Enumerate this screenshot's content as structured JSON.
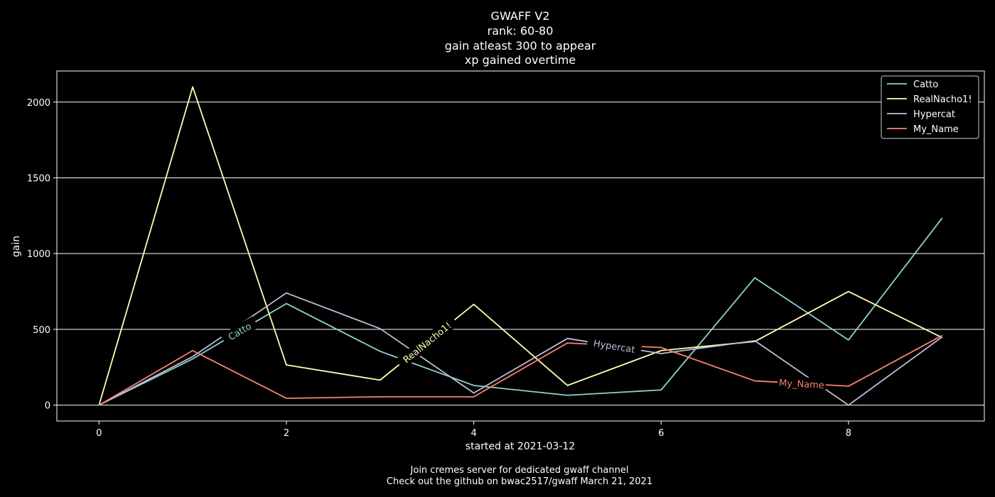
{
  "chart_data": {
    "type": "line",
    "title_lines": [
      "GWAFF V2",
      "rank: 60-80",
      "gain atleast 300 to appear",
      "xp gained overtime"
    ],
    "xlabel": "started at 2021-03-12",
    "ylabel": "gain",
    "footer_lines": [
      "Join cremes server for dedicated gwaff channel",
      "Check out the github on bwac2517/gwaff March 21, 2021"
    ],
    "xlim": [
      -0.45,
      9.45
    ],
    "ylim": [
      -105,
      2205
    ],
    "x_ticks": [
      0,
      2,
      4,
      6,
      8
    ],
    "y_ticks": [
      0,
      500,
      1000,
      1500,
      2000
    ],
    "grid": "horizontal",
    "legend_position": "top-right",
    "x": [
      0,
      1,
      2,
      3,
      4,
      5,
      6,
      7,
      8,
      9
    ],
    "series": [
      {
        "name": "Catto",
        "color": "#8dd3c7",
        "values": [
          0,
          305,
          670,
          355,
          130,
          65,
          100,
          840,
          430,
          1235
        ],
        "inline_label_x": 1.5
      },
      {
        "name": "RealNacho1!",
        "color": "#feffb3",
        "values": [
          0,
          2100,
          265,
          165,
          665,
          130,
          360,
          420,
          750,
          445
        ],
        "inline_label_x": 3.5
      },
      {
        "name": "Hypercat",
        "color": "#bfbbd9",
        "values": [
          0,
          320,
          740,
          505,
          80,
          440,
          340,
          425,
          0,
          450
        ],
        "inline_label_x": 5.5
      },
      {
        "name": "My_Name",
        "color": "#fa8174",
        "values": [
          0,
          360,
          45,
          55,
          55,
          410,
          380,
          160,
          125,
          460
        ],
        "inline_label_x": 7.5
      }
    ]
  }
}
